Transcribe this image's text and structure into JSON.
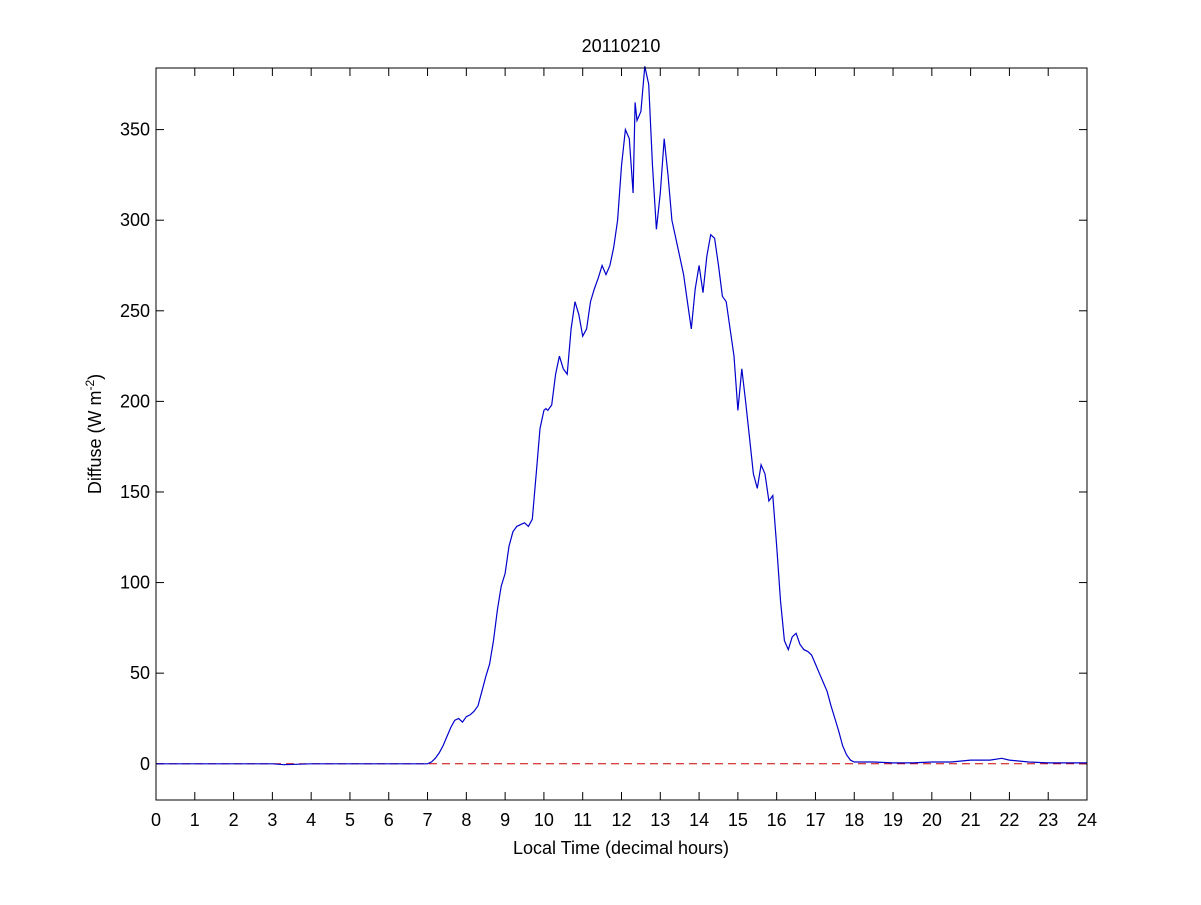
{
  "chart_data": {
    "type": "line",
    "title": "20110210",
    "xlabel": "Local Time (decimal hours)",
    "ylabel": {
      "main": "Diffuse (W m",
      "sup": "-2",
      "close": ")"
    },
    "xlim": [
      0,
      24
    ],
    "ylim": [
      -20,
      384
    ],
    "xticks": [
      "0",
      "1",
      "2",
      "3",
      "4",
      "5",
      "6",
      "7",
      "8",
      "9",
      "10",
      "11",
      "12",
      "13",
      "14",
      "15",
      "16",
      "17",
      "18",
      "19",
      "20",
      "21",
      "22",
      "23",
      "24"
    ],
    "yticks": [
      "0",
      "50",
      "100",
      "150",
      "200",
      "250",
      "300",
      "350"
    ],
    "grid": false,
    "colors": {
      "series": "#0000cc",
      "reference": "#cc0000",
      "axes": "#000000"
    },
    "reference_line": {
      "y": 0,
      "style": "dashed"
    },
    "series": [
      {
        "x": [
          0,
          1,
          2,
          3,
          3.3,
          4,
          5,
          6,
          7,
          7.1,
          7.2,
          7.3,
          7.4,
          7.5,
          7.6,
          7.7,
          7.8,
          7.9,
          8,
          8.1,
          8.2,
          8.3,
          8.4,
          8.5,
          8.6,
          8.7,
          8.8,
          8.9,
          9,
          9.1,
          9.2,
          9.3,
          9.4,
          9.5,
          9.6,
          9.7,
          9.8,
          9.9,
          10,
          10.05,
          10.1,
          10.2,
          10.3,
          10.4,
          10.5,
          10.6,
          10.7,
          10.8,
          10.9,
          11,
          11.1,
          11.2,
          11.3,
          11.4,
          11.5,
          11.6,
          11.7,
          11.8,
          11.9,
          12,
          12.1,
          12.2,
          12.3,
          12.35,
          12.4,
          12.5,
          12.6,
          12.7,
          12.8,
          12.9,
          13,
          13.1,
          13.2,
          13.3,
          13.4,
          13.5,
          13.6,
          13.7,
          13.8,
          13.9,
          14,
          14.1,
          14.2,
          14.3,
          14.4,
          14.5,
          14.6,
          14.7,
          14.8,
          14.9,
          15,
          15.1,
          15.2,
          15.3,
          15.4,
          15.5,
          15.6,
          15.7,
          15.8,
          15.9,
          16,
          16.1,
          16.2,
          16.3,
          16.4,
          16.5,
          16.6,
          16.7,
          16.8,
          16.9,
          17,
          17.1,
          17.2,
          17.3,
          17.4,
          17.5,
          17.6,
          17.7,
          17.8,
          17.9,
          18,
          18.5,
          19,
          19.5,
          20,
          20.5,
          21,
          21.3,
          21.5,
          21.8,
          22,
          22.5,
          23,
          24
        ],
        "y": [
          0,
          0,
          0,
          0,
          -0.5,
          0,
          0,
          0,
          0,
          1,
          3,
          6,
          10,
          15,
          20,
          24,
          25,
          23,
          26,
          27,
          29,
          32,
          40,
          48,
          55,
          68,
          85,
          98,
          105,
          120,
          128,
          131,
          132,
          133,
          131,
          135,
          160,
          185,
          195,
          196,
          195,
          198,
          215,
          225,
          218,
          215,
          240,
          255,
          248,
          236,
          240,
          255,
          262,
          268,
          275,
          270,
          275,
          285,
          300,
          330,
          350,
          345,
          315,
          365,
          355,
          360,
          385,
          375,
          330,
          295,
          315,
          345,
          325,
          300,
          290,
          280,
          270,
          255,
          240,
          262,
          275,
          260,
          280,
          292,
          290,
          275,
          258,
          255,
          240,
          225,
          195,
          218,
          200,
          180,
          160,
          152,
          165,
          160,
          145,
          148,
          120,
          90,
          68,
          63,
          70,
          72,
          66,
          63,
          62,
          60,
          55,
          50,
          45,
          40,
          32,
          25,
          18,
          10,
          5,
          2,
          1,
          1,
          0.5,
          0.5,
          1,
          1,
          2,
          2,
          2,
          3,
          2,
          1,
          0.5,
          0.5
        ]
      }
    ]
  }
}
